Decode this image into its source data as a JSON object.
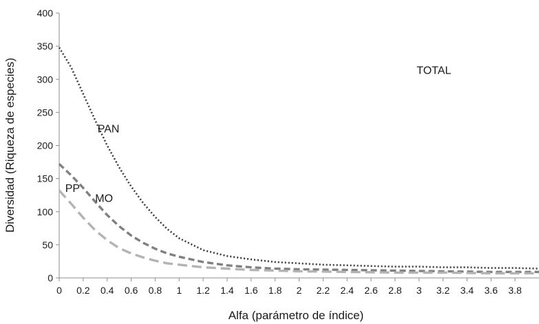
{
  "chart_data": {
    "type": "line",
    "title": "",
    "xlabel": "Alfa (parámetro de índice)",
    "ylabel": "Diversidad (Riqueza de especies)",
    "xlim": [
      0,
      4.0
    ],
    "ylim": [
      0,
      400
    ],
    "x_ticks": [
      "0",
      "0.2",
      "0.4",
      "0.6",
      "0.8",
      "1",
      "1.2",
      "1.4",
      "1.6",
      "1.8",
      "2",
      "2.2",
      "2.4",
      "2.6",
      "2.8",
      "3",
      "3.2",
      "3.4",
      "3.6",
      "3.8"
    ],
    "y_ticks": [
      "0",
      "50",
      "100",
      "150",
      "200",
      "250",
      "300",
      "350",
      "400"
    ],
    "grid": false,
    "legend": "none",
    "annotations": [
      {
        "text": "TOTAL",
        "x": 2.98,
        "y": 308
      },
      {
        "text": "PAN",
        "x": 0.32,
        "y": 220
      },
      {
        "text": "MO",
        "x": 0.3,
        "y": 115
      },
      {
        "text": "PP",
        "x": 0.05,
        "y": 130
      }
    ],
    "series": [
      {
        "style": "dotted",
        "color": "#3a3a3a",
        "x": [
          0.0,
          0.1,
          0.2,
          0.3,
          0.4,
          0.5,
          0.6,
          0.7,
          0.8,
          0.9,
          1.0,
          1.2,
          1.4,
          1.6,
          1.8,
          2.0,
          2.2,
          2.4,
          2.6,
          2.8,
          3.0,
          3.2,
          3.4,
          3.6,
          3.8,
          4.0
        ],
        "y": [
          348,
          318,
          278,
          238,
          200,
          167,
          138,
          113,
          92,
          74,
          60,
          42,
          33,
          28,
          24,
          22,
          20,
          19,
          18,
          17,
          17,
          16,
          16,
          15,
          15,
          14
        ]
      },
      {
        "style": "dashed",
        "color": "#808080",
        "x": [
          0.0,
          0.1,
          0.2,
          0.3,
          0.4,
          0.5,
          0.6,
          0.7,
          0.8,
          0.9,
          1.0,
          1.2,
          1.4,
          1.6,
          1.8,
          2.0,
          2.4,
          2.8,
          3.2,
          3.6,
          4.0
        ],
        "y": [
          172,
          155,
          136,
          115,
          95,
          78,
          64,
          53,
          44,
          37,
          32,
          24,
          19,
          16,
          14,
          13,
          12,
          11,
          10,
          9,
          9
        ]
      },
      {
        "style": "long-dashed",
        "color": "#b3b3b3",
        "x": [
          0.0,
          0.1,
          0.2,
          0.3,
          0.4,
          0.5,
          0.6,
          0.7,
          0.8,
          0.9,
          1.0,
          1.2,
          1.4,
          1.6,
          1.8,
          2.0,
          2.4,
          2.8,
          3.2,
          3.6,
          4.0
        ],
        "y": [
          132,
          112,
          91,
          72,
          57,
          45,
          37,
          31,
          26,
          22,
          20,
          16,
          14,
          12,
          11,
          10,
          9,
          8,
          8,
          7,
          7
        ]
      }
    ]
  }
}
